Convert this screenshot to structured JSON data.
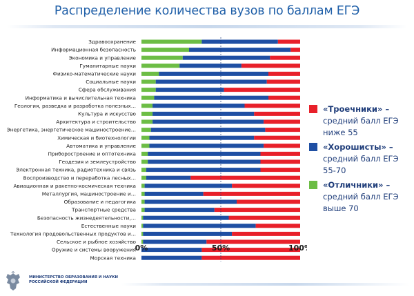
{
  "title": "Распределение количества вузов по баллам ЕГЭ",
  "colors": {
    "red": "#e8202a",
    "blue": "#1f4fa3",
    "green": "#6cbd45"
  },
  "legend": [
    {
      "name": "«Троечники» –",
      "desc": [
        "средний балл ЕГЭ",
        "ниже 55"
      ],
      "color": "#e8202a"
    },
    {
      "name": "«Хорошисты» –",
      "desc": [
        "средний балл ЕГЭ",
        "55-70"
      ],
      "color": "#1f4fa3"
    },
    {
      "name": "«Отличники» –",
      "desc": [
        "средний балл ЕГЭ",
        "выше 70"
      ],
      "color": "#6cbd45"
    }
  ],
  "footer": {
    "emblem_icon": "russian-coat-of-arms-icon",
    "ministry_lines": [
      "МИНИСТЕРСТВО ОБРАЗОВАНИЯ И НАУКИ",
      "РОССИЙСКОЙ ФЕДЕРАЦИИ"
    ]
  },
  "chart_data": {
    "type": "bar",
    "orientation": "horizontal",
    "stacked": "percent",
    "xlim": [
      0,
      100
    ],
    "x_ticks": [
      "0%",
      "50%",
      "100%"
    ],
    "grid": "vertical dashed line at 50%",
    "categories": [
      "Здравоохранение",
      "Информационная безопасность",
      "Экономика и управление",
      "Гуманитарные науки",
      "Физико-математические науки",
      "Социальные науки",
      "Сфера обслуживания",
      "Информатика и вычислительная техника",
      "Геология, разведка и разработка полезных…",
      "Культура и искусство",
      "Архитектура и строительство",
      "Энергетика, энергетическое машиностроение…",
      "Химическая и биотехнологии",
      "Автоматика и управление",
      "Приборостроение и оптотехника",
      "Геодезия и землеустройство",
      "Электронная техника, радиотехника и связь",
      "Воспроизводство и переработка лесных…",
      "Авиационная и ракетно-космическая техника",
      "Металлургия, машиностроение и…",
      "Образование и педагогика",
      "Транспортные средства",
      "Безопасность жизнедеятельности,…",
      "Естественные науки",
      "Технология продовольственных продуктов и…",
      "Сельское и рыбное хозяйство",
      "Оружие и системы вооружения",
      "Морская техника"
    ],
    "series": [
      {
        "name": "«Отличники»",
        "color": "#6cbd45",
        "values": [
          38,
          30,
          26,
          24,
          11,
          9,
          9,
          8,
          7,
          7,
          7,
          6,
          5,
          5,
          4,
          4,
          3,
          3,
          2,
          2,
          2,
          2,
          1,
          1,
          1,
          1,
          0,
          0
        ]
      },
      {
        "name": "«Хорошисты»",
        "color": "#1f4fa3",
        "values": [
          48,
          64,
          55,
          39,
          69,
          70,
          43,
          72,
          58,
          64,
          70,
          72,
          66,
          72,
          71,
          71,
          72,
          28,
          55,
          37,
          58,
          44,
          54,
          71,
          56,
          40,
          38,
          38
        ]
      },
      {
        "name": "«Троечники»",
        "color": "#e8202a",
        "values": [
          14,
          6,
          19,
          37,
          20,
          21,
          48,
          20,
          35,
          29,
          23,
          22,
          29,
          23,
          25,
          25,
          25,
          69,
          43,
          61,
          40,
          54,
          45,
          28,
          43,
          59,
          62,
          62
        ]
      }
    ]
  }
}
